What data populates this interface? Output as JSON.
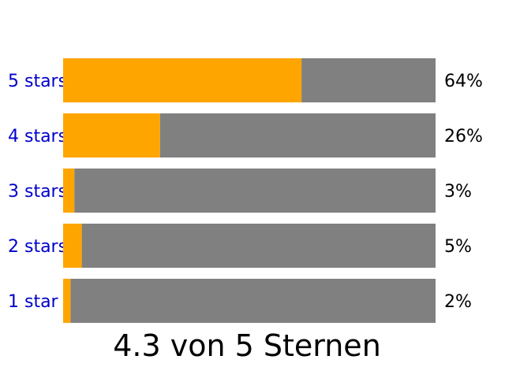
{
  "chart_data": {
    "type": "bar",
    "orientation": "horizontal",
    "stacked": true,
    "categories": [
      "5 stars",
      "4 stars",
      "3 stars",
      "2 stars",
      "1 star"
    ],
    "values": [
      64,
      26,
      3,
      5,
      2
    ],
    "value_labels": [
      "64%",
      "26%",
      "3%",
      "5%",
      "2%"
    ],
    "xlim": [
      0,
      100
    ],
    "grid": false,
    "legend": "none",
    "summary": "4.3 von 5 Sternen",
    "colors": {
      "filled": "#FFA500",
      "remainder": "#808080",
      "category_text": "#0000CC",
      "value_text": "#000000"
    }
  }
}
